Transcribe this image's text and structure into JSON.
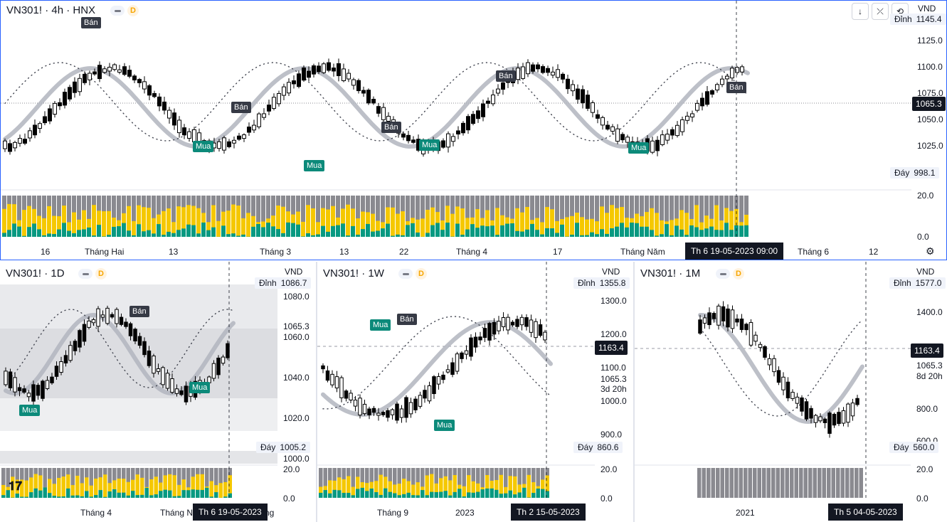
{
  "colors": {
    "accent": "#2962ff",
    "bull": "#ffffff",
    "bear": "#000000",
    "volume_gray": "#8a8a90",
    "volume_yellow": "#f5c800",
    "volume_teal": "#089981",
    "sell_bg": "#363a45",
    "buy_bg": "#0c8a7a"
  },
  "main": {
    "symbol": "VN301! · 4h · HNX",
    "badge": "D",
    "currency": "VND",
    "price_labels": [
      "1125.0",
      "1100.0",
      "1075.0",
      "1050.0",
      "1025.0"
    ],
    "top_label": "Đỉnh",
    "top_value": "1145.4",
    "bottom_label": "Đáy",
    "bottom_value": "998.1",
    "current_price": "1065.3",
    "vol_labels": [
      "20.0",
      "0.0"
    ],
    "time_labels": [
      "16",
      "Tháng Hai",
      "13",
      "Tháng 3",
      "13",
      "22",
      "Tháng 4",
      "17",
      "Tháng Năm",
      "Tháng 6",
      "12"
    ],
    "crosshair_time": "Th 6 19-05-2023   09:00",
    "signals": [
      {
        "type": "sell",
        "label": "Bán"
      },
      {
        "type": "sell",
        "label": "Bán"
      },
      {
        "type": "sell",
        "label": "Bán"
      },
      {
        "type": "sell",
        "label": "Bán"
      },
      {
        "type": "sell",
        "label": "Bán"
      },
      {
        "type": "buy",
        "label": "Mua"
      },
      {
        "type": "buy",
        "label": "Mua"
      },
      {
        "type": "buy",
        "label": "Mua"
      },
      {
        "type": "buy",
        "label": "Mua"
      }
    ],
    "toolbar": {
      "download_icon": "download-arrow-icon",
      "collapse_icon": "collapse-icon",
      "refresh_icon": "refresh-icon"
    }
  },
  "pane_1d": {
    "symbol": "VN301! · 1D",
    "badge": "D",
    "currency": "VND",
    "price_labels": [
      "1080.0",
      "1060.0",
      "1040.0",
      "1020.0",
      "1000.0"
    ],
    "top_label": "Đỉnh",
    "top_value": "1086.7",
    "bottom_label": "Đáy",
    "bottom_value": "1005.2",
    "current_price": "1065.3",
    "vol_labels": [
      "20.0",
      "0.0"
    ],
    "time_labels": [
      "Tháng 4",
      "Tháng N",
      "ng"
    ],
    "crosshair_time": "Th 6 19-05-2023",
    "signals": [
      {
        "type": "sell",
        "label": "Bán"
      },
      {
        "type": "buy",
        "label": "Mua"
      },
      {
        "type": "buy",
        "label": "Mua"
      }
    ]
  },
  "pane_1w": {
    "symbol": "VN301! · 1W",
    "badge": "D",
    "currency": "VND",
    "price_labels": [
      "1300.0",
      "1200.0",
      "1100.0",
      "1000.0",
      "900.0"
    ],
    "top_label": "Đỉnh",
    "top_value": "1355.8",
    "bottom_label": "Đáy",
    "bottom_value": "860.6",
    "current_price": "1065.3",
    "countdown": "3d 20h",
    "crosshair_price": "1163.4",
    "vol_labels": [
      "20.0",
      "0.0"
    ],
    "time_labels": [
      "Tháng 9",
      "2023"
    ],
    "crosshair_time": "Th 2 15-05-2023",
    "signals": [
      {
        "type": "sell",
        "label": "Bán"
      },
      {
        "type": "buy",
        "label": "Mua"
      },
      {
        "type": "buy",
        "label": "Mua"
      }
    ]
  },
  "pane_1m": {
    "symbol": "VN301! · 1M",
    "badge": "D",
    "currency": "VND",
    "price_labels": [
      "1400.0",
      "800.0",
      "600.0"
    ],
    "top_label": "Đỉnh",
    "top_value": "1577.0",
    "bottom_label": "Đáy",
    "bottom_value": "560.0",
    "current_price": "1065.3",
    "countdown": "8d 20h",
    "crosshair_price": "1163.4",
    "vol_labels": [
      "20.0",
      "0.0"
    ],
    "time_labels": [
      "2021"
    ],
    "crosshair_time": "Th 5 04-05-2023"
  }
}
